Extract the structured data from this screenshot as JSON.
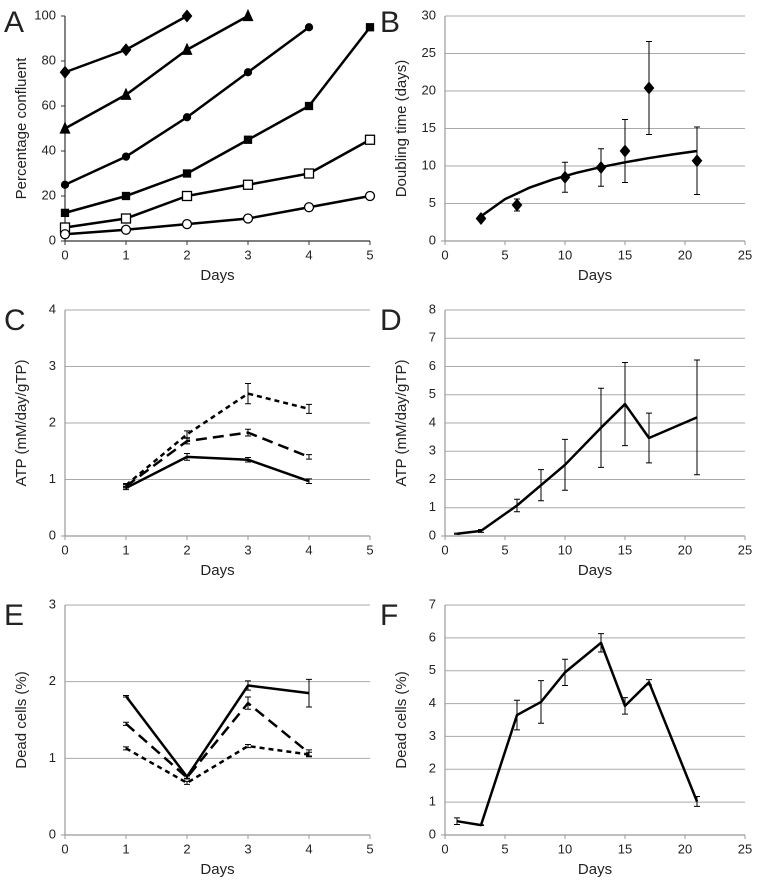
{
  "chart_data": [
    {
      "panel": "A",
      "type": "line",
      "xlabel": "Days",
      "ylabel": "Percentage confluent",
      "xlim": [
        0,
        5
      ],
      "xticks": [
        0,
        1,
        2,
        3,
        4,
        5
      ],
      "ylim": [
        0,
        100
      ],
      "yticks": [
        0,
        20,
        40,
        60,
        80,
        100
      ],
      "grid": false,
      "series": [
        {
          "color": "#000000",
          "marker": "diamond",
          "line": "solid",
          "x": [
            0,
            1,
            2,
            3,
            4,
            5
          ],
          "values": [
            75,
            85,
            100,
            null,
            null,
            null
          ]
        },
        {
          "color": "#000000",
          "marker": "triangle",
          "line": "solid",
          "x": [
            0,
            1,
            2,
            3,
            4,
            5
          ],
          "values": [
            50,
            65,
            85,
            100,
            null,
            null
          ]
        },
        {
          "color": "#000000",
          "marker": "circle",
          "line": "solid",
          "x": [
            0,
            1,
            2,
            3,
            4,
            5
          ],
          "values": [
            25,
            37.5,
            55,
            75,
            95,
            null
          ]
        },
        {
          "color": "#000000",
          "marker": "square",
          "line": "solid",
          "x": [
            0,
            1,
            2,
            3,
            4,
            5
          ],
          "values": [
            12.5,
            20,
            30,
            45,
            60,
            95
          ]
        },
        {
          "color": "#000000",
          "marker": "square-open",
          "line": "solid",
          "x": [
            0,
            1,
            2,
            3,
            4,
            5
          ],
          "values": [
            6,
            10,
            20,
            25,
            30,
            45
          ]
        },
        {
          "color": "#000000",
          "marker": "circle-open",
          "line": "solid",
          "x": [
            0,
            1,
            2,
            3,
            4,
            5
          ],
          "values": [
            3,
            5,
            7.5,
            10,
            15,
            20
          ]
        }
      ]
    },
    {
      "panel": "B",
      "type": "scatter",
      "xlabel": "Days",
      "ylabel": "Doubling time (days)",
      "xlim": [
        0,
        25
      ],
      "xticks": [
        0,
        5,
        10,
        15,
        20,
        25
      ],
      "ylim": [
        0,
        30
      ],
      "yticks": [
        0,
        5,
        10,
        15,
        20,
        25,
        30
      ],
      "grid": true,
      "series": [
        {
          "color": "#000000",
          "marker": "diamond",
          "line": "none",
          "x": [
            3,
            6,
            10,
            13,
            15,
            17,
            21
          ],
          "values": [
            3,
            4.8,
            8.5,
            9.8,
            12,
            20.4,
            10.7
          ],
          "errors": [
            0.3,
            0.8,
            2,
            2.5,
            4.2,
            6.2,
            4.5
          ]
        },
        {
          "color": "#000000",
          "marker": "none",
          "line": "solid",
          "x": [
            3,
            5,
            7,
            9,
            11,
            13,
            15,
            17,
            19,
            21
          ],
          "values": [
            3.3,
            5.58,
            7.09,
            8.21,
            9.11,
            9.86,
            10.49,
            11.06,
            11.55,
            12
          ]
        }
      ]
    },
    {
      "panel": "C",
      "type": "line",
      "xlabel": "Days",
      "ylabel": "ATP  (mM/day/gTP)",
      "xlim": [
        0,
        5
      ],
      "xticks": [
        0,
        1,
        2,
        3,
        4,
        5
      ],
      "ylim": [
        0,
        4
      ],
      "yticks": [
        0,
        1,
        2,
        3,
        4
      ],
      "grid": true,
      "series": [
        {
          "color": "#000000",
          "marker": "none",
          "line": "solid",
          "x": [
            1,
            2,
            3,
            4
          ],
          "values": [
            0.85,
            1.4,
            1.35,
            0.97
          ],
          "errors": [
            0.03,
            0.06,
            0.04,
            0.04
          ]
        },
        {
          "color": "#000000",
          "marker": "none",
          "line": "dashed",
          "x": [
            1,
            2,
            3,
            4
          ],
          "values": [
            0.88,
            1.68,
            1.83,
            1.4
          ],
          "errors": [
            0.03,
            0.05,
            0.06,
            0.04
          ]
        },
        {
          "color": "#000000",
          "marker": "none",
          "line": "short-dashed",
          "x": [
            1,
            2,
            3,
            4
          ],
          "values": [
            0.9,
            1.8,
            2.52,
            2.25
          ],
          "errors": [
            0.03,
            0.06,
            0.18,
            0.08
          ]
        }
      ]
    },
    {
      "panel": "D",
      "type": "line",
      "xlabel": "Days",
      "ylabel": "ATP  (mM/day/gTP)",
      "xlim": [
        0,
        25
      ],
      "xticks": [
        0,
        5,
        10,
        15,
        20,
        25
      ],
      "ylim": [
        0,
        8
      ],
      "yticks": [
        0,
        1,
        2,
        3,
        4,
        5,
        6,
        7,
        8
      ],
      "grid": true,
      "series": [
        {
          "color": "#000000",
          "marker": "none",
          "line": "solid",
          "x": [
            1,
            3,
            6,
            8,
            10,
            13,
            15,
            17,
            21
          ],
          "values": [
            0.08,
            0.18,
            1.08,
            1.8,
            2.52,
            3.83,
            4.67,
            3.47,
            4.2
          ],
          "errors": [
            0.02,
            0.05,
            0.22,
            0.55,
            0.9,
            1.4,
            1.47,
            0.88,
            2.03
          ]
        }
      ]
    },
    {
      "panel": "E",
      "type": "line",
      "xlabel": "Days",
      "ylabel": "Dead cells (%)",
      "xlim": [
        0,
        5
      ],
      "xticks": [
        0,
        1,
        2,
        3,
        4,
        5
      ],
      "ylim": [
        0,
        3
      ],
      "yticks": [
        0,
        1,
        2,
        3
      ],
      "grid": true,
      "series": [
        {
          "color": "#000000",
          "marker": "none",
          "line": "solid",
          "x": [
            1,
            2,
            3,
            4
          ],
          "values": [
            1.81,
            0.76,
            1.95,
            1.85
          ],
          "errors": [
            0.01,
            0.02,
            0.06,
            0.18
          ]
        },
        {
          "color": "#000000",
          "marker": "none",
          "line": "dashed",
          "x": [
            1,
            2,
            3,
            4
          ],
          "values": [
            1.45,
            0.75,
            1.72,
            1.07
          ],
          "errors": [
            0.02,
            0.02,
            0.08,
            0.04
          ]
        },
        {
          "color": "#000000",
          "marker": "none",
          "line": "short-dashed",
          "x": [
            1,
            2,
            3,
            4
          ],
          "values": [
            1.13,
            0.68,
            1.16,
            1.05
          ],
          "errors": [
            0.02,
            0.02,
            0.02,
            0.03
          ]
        }
      ]
    },
    {
      "panel": "F",
      "type": "line",
      "xlabel": "Days",
      "ylabel": "Dead cells (%)",
      "xlim": [
        0,
        25
      ],
      "xticks": [
        0,
        5,
        10,
        15,
        20,
        25
      ],
      "ylim": [
        0,
        7
      ],
      "yticks": [
        0,
        1,
        2,
        3,
        4,
        5,
        6,
        7
      ],
      "grid": true,
      "series": [
        {
          "color": "#000000",
          "marker": "none",
          "line": "solid",
          "x": [
            1,
            3,
            6,
            8,
            10,
            13,
            15,
            17,
            21
          ],
          "values": [
            0.42,
            0.3,
            3.65,
            4.05,
            4.95,
            5.85,
            3.93,
            4.65,
            1.02
          ],
          "errors": [
            0.1,
            0.01,
            0.45,
            0.65,
            0.4,
            0.28,
            0.25,
            0.08,
            0.15
          ]
        }
      ]
    }
  ]
}
